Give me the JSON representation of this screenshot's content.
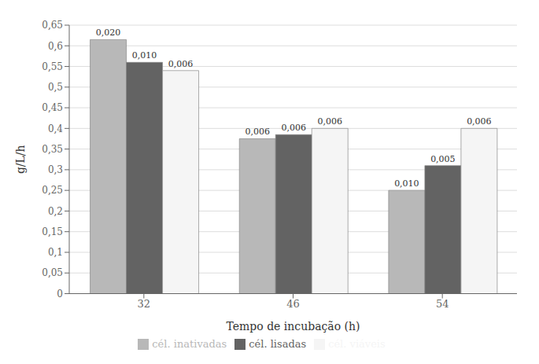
{
  "chart_data": {
    "type": "bar",
    "xlabel": "Tempo de incubação (h)",
    "ylabel": "g/L/h",
    "categories": [
      "32",
      "46",
      "54"
    ],
    "series": [
      {
        "name": "cél. inativadas",
        "color": "#b8b8b8",
        "values": [
          0.615,
          0.375,
          0.25
        ],
        "errors": [
          0.02,
          0.006,
          0.01
        ],
        "error_labels": [
          "0,020",
          "0,006",
          "0,010"
        ]
      },
      {
        "name": "cél. lisadas",
        "color": "#636363",
        "values": [
          0.56,
          0.385,
          0.31
        ],
        "errors": [
          0.01,
          0.006,
          0.005
        ],
        "error_labels": [
          "0,010",
          "0,006",
          "0,005"
        ]
      },
      {
        "name": "cél. viáveis",
        "color": "#f5f5f5",
        "values": [
          0.54,
          0.4,
          0.4
        ],
        "errors": [
          0.006,
          0.006,
          0.006
        ],
        "error_labels": [
          "0,006",
          "0,006",
          "0,006"
        ]
      }
    ],
    "ylim": [
      0,
      0.65
    ],
    "yticks": [
      0,
      {
        "value": 0.05,
        "label": "0,05"
      },
      {
        "value": 0.1,
        "label": "0,1"
      },
      {
        "value": 0.15,
        "label": "0,15"
      },
      {
        "value": 0.2,
        "label": "0,2"
      },
      {
        "value": 0.25,
        "label": "0,25"
      },
      {
        "value": 0.3,
        "label": "0,3"
      },
      {
        "value": 0.35,
        "label": "0,35"
      },
      {
        "value": 0.4,
        "label": "0,4"
      },
      {
        "value": 0.45,
        "label": "0,45"
      },
      {
        "value": 0.5,
        "label": "0,5"
      },
      {
        "value": 0.55,
        "label": "0,55"
      },
      {
        "value": 0.6,
        "label": "0,6"
      },
      {
        "value": 0.65,
        "label": "0,65"
      }
    ],
    "grid": true,
    "legend": "bottom"
  }
}
